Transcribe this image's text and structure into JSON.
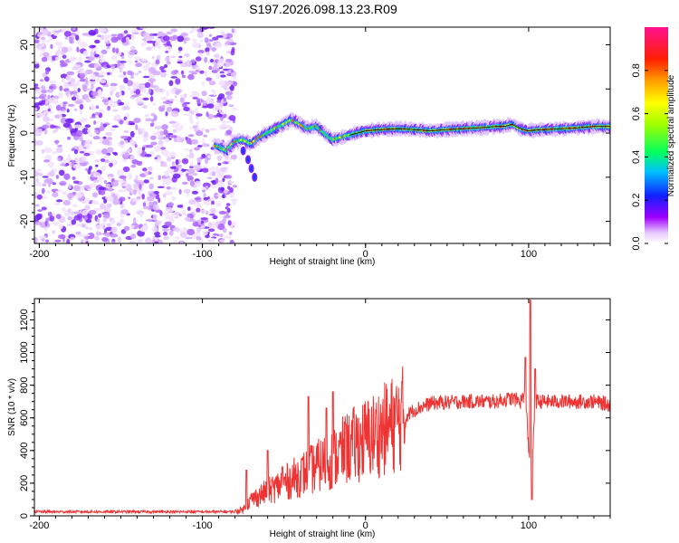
{
  "title": "S197.2026.098.13.23.R09",
  "chart_data": [
    {
      "type": "heatmap",
      "name": "spectrogram",
      "xlabel": "Height of straight line (km)",
      "ylabel": "Frequency (Hz)",
      "xlim": [
        -203,
        150
      ],
      "ylim": [
        -25,
        24
      ],
      "xticks": [
        -200,
        -100,
        0,
        100
      ],
      "xtick_labels": [
        "-200",
        "-100",
        "0",
        "100"
      ],
      "yticks": [
        20,
        10,
        0,
        -10,
        -20
      ],
      "ytick_labels": [
        "20",
        "10",
        "0",
        "-10",
        "-20"
      ],
      "noise_region_x": [
        -203,
        -80
      ],
      "signal_track": {
        "x": [
          -90,
          -85,
          -80,
          -75,
          -70,
          -65,
          -60,
          -55,
          -50,
          -45,
          -40,
          -35,
          -30,
          -25,
          -20,
          -15,
          -10,
          -5,
          0,
          10,
          20,
          30,
          40,
          50,
          60,
          70,
          80,
          85,
          90,
          95,
          100,
          105,
          110,
          120,
          130,
          140,
          150
        ],
        "y": [
          -3,
          -4,
          -2,
          -1.5,
          -2.5,
          -1,
          0,
          1,
          2,
          3,
          2,
          1,
          1.5,
          0,
          -1.5,
          -1,
          -0.5,
          0,
          0.5,
          0.8,
          1,
          0.8,
          0.5,
          0.8,
          1,
          1.2,
          1.5,
          1.5,
          2,
          1,
          0.5,
          0.7,
          0.8,
          1,
          1.2,
          1.5,
          1.5
        ]
      },
      "side_branch": {
        "x": [
          -75,
          -72,
          -70,
          -68
        ],
        "y": [
          -4,
          -6,
          -8,
          -10
        ]
      },
      "colorbar": {
        "label": "Normalized spectral amplitude",
        "range": [
          0,
          1
        ],
        "ticks": [
          0.0,
          0.2,
          0.4,
          0.6,
          0.8
        ],
        "tick_labels": [
          "0.0",
          "0.2",
          "0.4",
          "0.6",
          "0.8"
        ]
      }
    },
    {
      "type": "line",
      "name": "snr",
      "xlabel": "Height of straight line (km)",
      "ylabel": "SNR (10 * v/v)",
      "xlim": [
        -203,
        150
      ],
      "ylim": [
        0,
        1330
      ],
      "xticks": [
        -200,
        -100,
        0,
        100
      ],
      "xtick_labels": [
        "-200",
        "-100",
        "0",
        "100"
      ],
      "yticks": [
        0,
        200,
        400,
        600,
        800,
        1000,
        1200
      ],
      "ytick_labels": [
        "0",
        "200",
        "400",
        "600",
        "800",
        "1000",
        "1200"
      ],
      "color": "#ee3333",
      "profile": {
        "x": [
          -203,
          -80,
          -75,
          -70,
          -60,
          -50,
          -40,
          -30,
          -20,
          -10,
          0,
          10,
          20,
          30,
          40,
          60,
          80,
          90,
          95,
          98,
          100,
          102,
          104,
          110,
          120,
          130,
          140,
          150
        ],
        "y": [
          25,
          25,
          40,
          100,
          150,
          200,
          250,
          300,
          350,
          420,
          470,
          520,
          580,
          650,
          690,
          700,
          700,
          720,
          700,
          760,
          420,
          250,
          700,
          700,
          700,
          700,
          700,
          680
        ]
      },
      "spikes": [
        {
          "x": -73,
          "y": 280
        },
        {
          "x": -60,
          "y": 400
        },
        {
          "x": -51,
          "y": 300
        },
        {
          "x": -35,
          "y": 730
        },
        {
          "x": -24,
          "y": 660
        },
        {
          "x": -20,
          "y": 760
        },
        {
          "x": -12,
          "y": 560
        },
        {
          "x": 98,
          "y": 970
        },
        {
          "x": 101,
          "y": 1320
        },
        {
          "x": 102,
          "y": 100
        },
        {
          "x": 104,
          "y": 900
        }
      ]
    }
  ]
}
